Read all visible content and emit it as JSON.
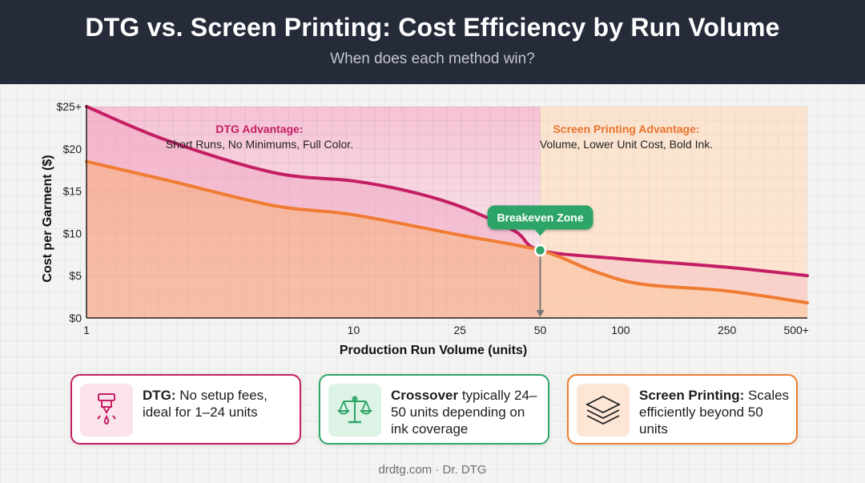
{
  "header": {
    "title": "DTG vs. Screen Printing: Cost Efficiency by Run Volume",
    "subtitle": "When does each method win?"
  },
  "colors": {
    "header_bg": "#262b3a",
    "dtg": "#c41e64",
    "screen": "#f07c33",
    "breakeven": "#2ea567"
  },
  "chart_data": {
    "type": "area",
    "xlabel": "Production Run Volume (units)",
    "ylabel": "Cost per Garment ($)",
    "x_scale": "log",
    "x_ticks": [
      {
        "value": 1,
        "label": "1"
      },
      {
        "value": 10,
        "label": "10"
      },
      {
        "value": 25,
        "label": "25"
      },
      {
        "value": 50,
        "label": "50"
      },
      {
        "value": 100,
        "label": "100"
      },
      {
        "value": 250,
        "label": "250"
      },
      {
        "value": 500,
        "label": "500+"
      }
    ],
    "y_ticks": [
      {
        "value": 0,
        "label": "$0"
      },
      {
        "value": 5,
        "label": "$5"
      },
      {
        "value": 10,
        "label": "$10"
      },
      {
        "value": 15,
        "label": "$15"
      },
      {
        "value": 20,
        "label": "$20"
      },
      {
        "value": 25,
        "label": "$25+"
      }
    ],
    "ylim": [
      0,
      25
    ],
    "grid": true,
    "series": [
      {
        "name": "DTG",
        "color": "#c41e64",
        "points": [
          [
            1,
            25
          ],
          [
            2,
            21
          ],
          [
            5,
            17.2
          ],
          [
            10,
            16.2
          ],
          [
            16,
            15
          ],
          [
            25,
            13.2
          ],
          [
            40,
            10.3
          ],
          [
            50,
            8
          ],
          [
            100,
            7
          ],
          [
            250,
            6
          ],
          [
            500,
            5
          ]
        ]
      },
      {
        "name": "Screen Printing",
        "color": "#f07c33",
        "points": [
          [
            1,
            18.5
          ],
          [
            2,
            16.3
          ],
          [
            5,
            13.3
          ],
          [
            10,
            12.2
          ],
          [
            25,
            9.8
          ],
          [
            50,
            8
          ],
          [
            80,
            5.5
          ],
          [
            120,
            4
          ],
          [
            250,
            3.2
          ],
          [
            500,
            1.8
          ]
        ]
      }
    ],
    "breakeven": {
      "x": 50,
      "y": 8,
      "label": "Breakeven Zone"
    },
    "regions": [
      {
        "title": "DTG Advantage:",
        "text": "Short Runs, No Minimums, Full Color."
      },
      {
        "title": "Screen Printing Advantage:",
        "text": "Volume, Lower Unit Cost, Bold Ink."
      }
    ]
  },
  "cards": [
    {
      "name": "dtg",
      "bold": "DTG:",
      "text": " No setup fees, ideal for 1–24 units",
      "icon": "print-nozzle-icon",
      "color": "#c41e64",
      "bg": "#fbe3ec"
    },
    {
      "name": "crossover",
      "bold": "Crossover",
      "text": " typically 24–50 units depending on ink coverage",
      "icon": "balance-scale-icon",
      "color": "#2ea567",
      "bg": "#dcf3e5"
    },
    {
      "name": "screen",
      "bold": "Screen Printing:",
      "text": " Scales efficiently beyond 50 units",
      "icon": "layers-icon",
      "color": "#f07c33",
      "bg": "#fde6d6"
    }
  ],
  "footer": "drdtg.com · Dr. DTG"
}
